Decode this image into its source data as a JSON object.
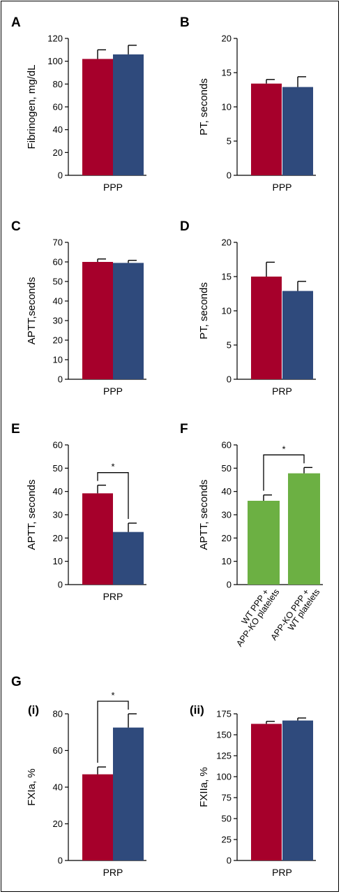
{
  "colors": {
    "wt": "#A6002B",
    "ko": "#2F4A7C",
    "mix": "#6CB043"
  },
  "chart_data": [
    {
      "id": "A",
      "panel_label": "A",
      "type": "bar",
      "ylabel": "Fibrinogen, mg/dL",
      "xlabel": "PPP",
      "ylim": [
        0,
        120
      ],
      "yticks": [
        0,
        20,
        40,
        60,
        80,
        100,
        120
      ],
      "bars": [
        {
          "value": 102,
          "error": 8,
          "color": "wt"
        },
        {
          "value": 106,
          "error": 8,
          "color": "ko"
        }
      ]
    },
    {
      "id": "B",
      "panel_label": "B",
      "type": "bar",
      "ylabel": "PT, seconds",
      "xlabel": "PPP",
      "ylim": [
        0,
        20
      ],
      "yticks": [
        0,
        5,
        10,
        15,
        20
      ],
      "bars": [
        {
          "value": 13.4,
          "error": 0.6,
          "color": "wt"
        },
        {
          "value": 12.9,
          "error": 1.5,
          "color": "ko"
        }
      ]
    },
    {
      "id": "C",
      "panel_label": "C",
      "type": "bar",
      "ylabel": "APTT,seconds",
      "xlabel": "PPP",
      "ylim": [
        0,
        70
      ],
      "yticks": [
        0,
        10,
        20,
        30,
        40,
        50,
        60,
        70
      ],
      "bars": [
        {
          "value": 60,
          "error": 1.5,
          "color": "wt"
        },
        {
          "value": 59.5,
          "error": 1.3,
          "color": "ko"
        }
      ]
    },
    {
      "id": "D",
      "panel_label": "D",
      "type": "bar",
      "ylabel": "PT, seconds",
      "xlabel": "PRP",
      "ylim": [
        0,
        20
      ],
      "yticks": [
        0,
        5,
        10,
        15,
        20
      ],
      "bars": [
        {
          "value": 15,
          "error": 2.1,
          "color": "wt"
        },
        {
          "value": 12.9,
          "error": 1.4,
          "color": "ko"
        }
      ]
    },
    {
      "id": "E",
      "panel_label": "E",
      "type": "bar",
      "ylabel": "APTT, seconds",
      "xlabel": "PRP",
      "ylim": [
        0,
        60
      ],
      "yticks": [
        0,
        10,
        20,
        30,
        40,
        50,
        60
      ],
      "bars": [
        {
          "value": 39.2,
          "error": 3.5,
          "color": "wt"
        },
        {
          "value": 22.6,
          "error": 3.8,
          "color": "ko"
        }
      ],
      "significance": "*"
    },
    {
      "id": "F",
      "panel_label": "F",
      "type": "bar",
      "ylabel": "APTT, seconds",
      "xlabel": "",
      "ylim": [
        0,
        60
      ],
      "yticks": [
        0,
        10,
        20,
        30,
        40,
        50,
        60
      ],
      "categories": [
        "WT PPP +\nAPP-KO platelets",
        "APP-KO PPP +\nWT platelets"
      ],
      "bars": [
        {
          "value": 36,
          "error": 2.5,
          "color": "mix"
        },
        {
          "value": 47.8,
          "error": 2.5,
          "color": "mix"
        }
      ],
      "significance": "*"
    },
    {
      "id": "Gi",
      "panel_label": "G",
      "sub_label": "(i)",
      "type": "bar",
      "ylabel": "FXIa, %",
      "xlabel": "PRP",
      "ylim": [
        0,
        80
      ],
      "yticks": [
        0,
        20,
        40,
        60,
        80
      ],
      "bars": [
        {
          "value": 47,
          "error": 4,
          "color": "wt"
        },
        {
          "value": 72.5,
          "error": 7.5,
          "color": "ko"
        }
      ],
      "significance": "*"
    },
    {
      "id": "Gii",
      "sub_label": "(ii)",
      "type": "bar",
      "ylabel": "FXIIa, %",
      "xlabel": "PRP",
      "ylim": [
        0,
        175
      ],
      "yticks": [
        0,
        25,
        50,
        75,
        100,
        125,
        150,
        175
      ],
      "bars": [
        {
          "value": 163,
          "error": 3,
          "color": "wt"
        },
        {
          "value": 167,
          "error": 3,
          "color": "ko"
        }
      ]
    }
  ]
}
